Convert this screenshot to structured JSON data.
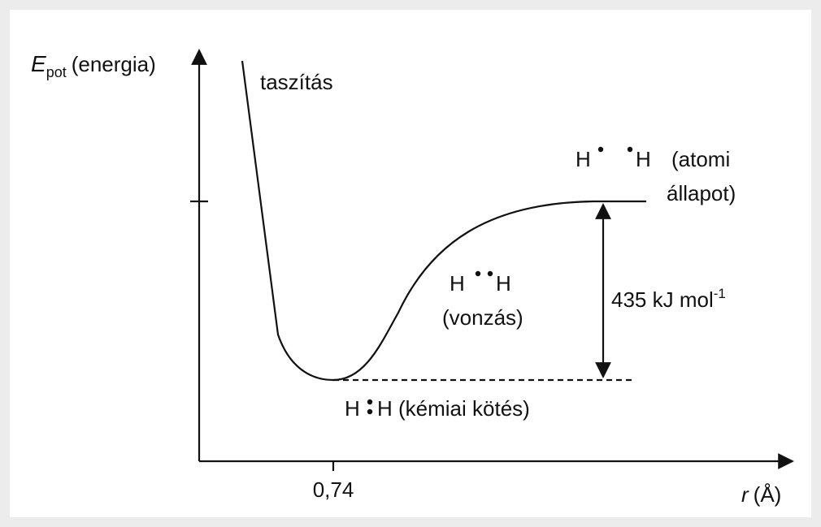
{
  "diagram": {
    "y_axis": {
      "symbol": "E",
      "subscript": "pot",
      "label": "(energia)"
    },
    "x_axis": {
      "symbol": "r",
      "unit": "(Å)",
      "tick": "0,74"
    },
    "repulsion": "taszítás",
    "atomic_state": {
      "left_atom": "H",
      "right_atom": "H",
      "line1": "(atomi",
      "line2": "állapot)"
    },
    "attraction": {
      "left_atom": "H",
      "right_atom": "H",
      "label": "(vonzás)"
    },
    "energy": {
      "label": "435 kJ mol",
      "superscript": "-1"
    },
    "bond": {
      "left_atom": "H",
      "right_atom": "H",
      "label": "(kémiai kötés)"
    }
  }
}
